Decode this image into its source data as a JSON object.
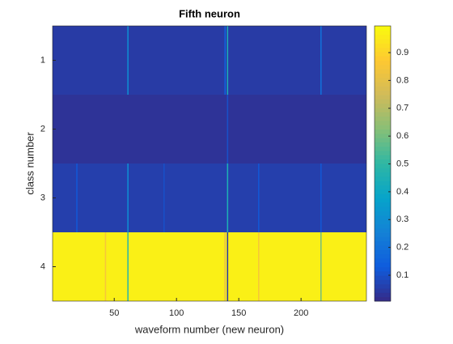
{
  "chart_data": {
    "type": "heatmap",
    "title": "Fifth neuron",
    "x_label": "waveform number (new neuron)",
    "y_label": "class number",
    "xlim": [
      0.5,
      252.5
    ],
    "xticks": [
      50,
      100,
      150,
      200
    ],
    "ylim": [
      0.5,
      4.5
    ],
    "yticks": [
      1,
      2,
      3,
      4
    ],
    "y_reversed": true,
    "rows": [
      1,
      2,
      3,
      4
    ],
    "row_values": [
      0.05,
      0.03,
      0.06,
      0.97
    ],
    "stripes": [
      {
        "row": 1,
        "x": 61,
        "value": 0.3
      },
      {
        "row": 1,
        "x": 139,
        "value": 0.15
      },
      {
        "row": 1,
        "x": 141,
        "value": 0.45
      },
      {
        "row": 1,
        "x": 216,
        "value": 0.2
      },
      {
        "row": 2,
        "x": 141,
        "value": 0.1
      },
      {
        "row": 3,
        "x": 61,
        "value": 0.3
      },
      {
        "row": 3,
        "x": 141,
        "value": 0.45
      },
      {
        "row": 3,
        "x": 20,
        "value": 0.12
      },
      {
        "row": 3,
        "x": 90,
        "value": 0.1
      },
      {
        "row": 3,
        "x": 166,
        "value": 0.12
      },
      {
        "row": 3,
        "x": 216,
        "value": 0.12
      },
      {
        "row": 4,
        "x": 43,
        "value": 0.85
      },
      {
        "row": 4,
        "x": 61,
        "value": 0.5
      },
      {
        "row": 4,
        "x": 139,
        "value": 0.8
      },
      {
        "row": 4,
        "x": 141,
        "value": 0.05
      },
      {
        "row": 4,
        "x": 166,
        "value": 0.85
      },
      {
        "row": 4,
        "x": 216,
        "value": 0.6
      }
    ],
    "clim": [
      0.007,
      0.996
    ],
    "cticks": [
      0.1,
      0.2,
      0.3,
      0.4,
      0.5,
      0.6,
      0.7,
      0.8,
      0.9
    ],
    "colormap": [
      "#352a87",
      "#0f5cdd",
      "#1481d6",
      "#06a4ca",
      "#2eb7a4",
      "#87bf77",
      "#d1bb59",
      "#fec832",
      "#f9fb0e"
    ]
  }
}
